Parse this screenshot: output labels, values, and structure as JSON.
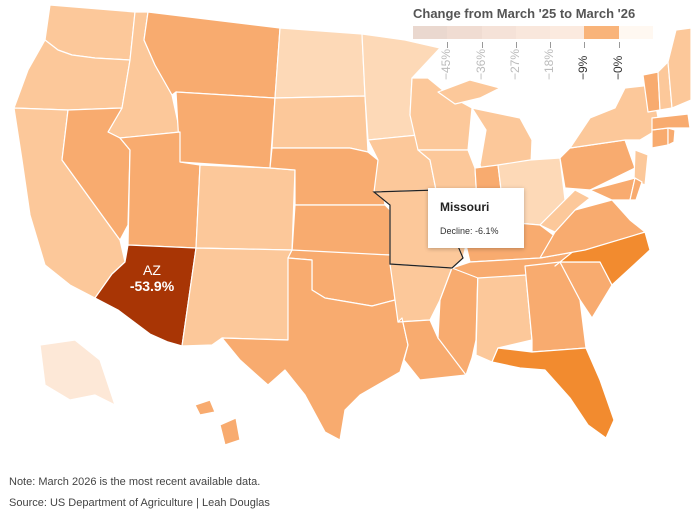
{
  "legend": {
    "title": "Change from March '25 to March '26",
    "ticks": [
      "−45%",
      "−36%",
      "−27%",
      "−18%",
      "−9%",
      "−0%"
    ],
    "bins": [
      "#ead8cf",
      "#f0dcd2",
      "#f5e2d8",
      "#f9e7dc",
      "#fbeadf",
      "#f9b47a",
      "#fff8f1"
    ]
  },
  "highlight": {
    "state": "AZ",
    "value": "-53.9%"
  },
  "tooltip": {
    "title": "Missouri",
    "value": "Decline: -6.1%"
  },
  "footer": {
    "note": "Note: March 2026 is the most recent available data.",
    "source": "Source: US Department of Agriculture | Leah Douglas"
  },
  "colors": {
    "az": "#a83505",
    "strong": "#f28b2f",
    "mid": "#f8ab6f",
    "light": "#fcc89a",
    "pale": "#fdd9b7",
    "faint": "#fde8d7"
  },
  "states": [
    {
      "abbr": "WA",
      "fill": "light"
    },
    {
      "abbr": "OR",
      "fill": "light"
    },
    {
      "abbr": "CA",
      "fill": "light"
    },
    {
      "abbr": "ID",
      "fill": "light"
    },
    {
      "abbr": "NV",
      "fill": "mid"
    },
    {
      "abbr": "MT",
      "fill": "mid"
    },
    {
      "abbr": "WY",
      "fill": "mid"
    },
    {
      "abbr": "UT",
      "fill": "mid"
    },
    {
      "abbr": "AZ",
      "fill": "az"
    },
    {
      "abbr": "CO",
      "fill": "light"
    },
    {
      "abbr": "NM",
      "fill": "light"
    },
    {
      "abbr": "ND",
      "fill": "pale"
    },
    {
      "abbr": "SD",
      "fill": "light"
    },
    {
      "abbr": "NE",
      "fill": "mid"
    },
    {
      "abbr": "KS",
      "fill": "mid"
    },
    {
      "abbr": "OK",
      "fill": "mid"
    },
    {
      "abbr": "TX",
      "fill": "mid"
    },
    {
      "abbr": "MN",
      "fill": "pale"
    },
    {
      "abbr": "IA",
      "fill": "light"
    },
    {
      "abbr": "MO",
      "fill": "light"
    },
    {
      "abbr": "AR",
      "fill": "light"
    },
    {
      "abbr": "LA",
      "fill": "mid"
    },
    {
      "abbr": "WI",
      "fill": "light"
    },
    {
      "abbr": "IL",
      "fill": "light"
    },
    {
      "abbr": "MS",
      "fill": "mid"
    },
    {
      "abbr": "AL",
      "fill": "light"
    },
    {
      "abbr": "MI",
      "fill": "light"
    },
    {
      "abbr": "IN",
      "fill": "mid"
    },
    {
      "abbr": "OH",
      "fill": "pale"
    },
    {
      "abbr": "KY",
      "fill": "mid"
    },
    {
      "abbr": "TN",
      "fill": "mid"
    },
    {
      "abbr": "GA",
      "fill": "mid"
    },
    {
      "abbr": "FL",
      "fill": "strong"
    },
    {
      "abbr": "SC",
      "fill": "mid"
    },
    {
      "abbr": "NC",
      "fill": "strong"
    },
    {
      "abbr": "VA",
      "fill": "mid"
    },
    {
      "abbr": "WV",
      "fill": "light"
    },
    {
      "abbr": "PA",
      "fill": "mid"
    },
    {
      "abbr": "NY",
      "fill": "light"
    },
    {
      "abbr": "NJ",
      "fill": "light"
    },
    {
      "abbr": "MD",
      "fill": "mid"
    },
    {
      "abbr": "DE",
      "fill": "mid"
    },
    {
      "abbr": "CT",
      "fill": "mid"
    },
    {
      "abbr": "RI",
      "fill": "mid"
    },
    {
      "abbr": "MA",
      "fill": "mid"
    },
    {
      "abbr": "VT",
      "fill": "mid"
    },
    {
      "abbr": "NH",
      "fill": "light"
    },
    {
      "abbr": "ME",
      "fill": "light"
    },
    {
      "abbr": "AK",
      "fill": "faint"
    },
    {
      "abbr": "HI",
      "fill": "mid"
    }
  ]
}
